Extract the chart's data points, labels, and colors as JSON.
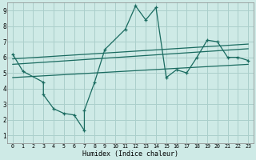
{
  "title": "",
  "xlabel": "Humidex (Indice chaleur)",
  "xlim": [
    -0.5,
    23.5
  ],
  "ylim": [
    0.5,
    9.5
  ],
  "xticks": [
    0,
    1,
    2,
    3,
    4,
    5,
    6,
    7,
    8,
    9,
    10,
    11,
    12,
    13,
    14,
    15,
    16,
    17,
    18,
    19,
    20,
    21,
    22,
    23
  ],
  "yticks": [
    1,
    2,
    3,
    4,
    5,
    6,
    7,
    8,
    9
  ],
  "bg_color": "#ceeae6",
  "grid_color": "#aacfcb",
  "line_color": "#1a6b60",
  "scatter_x": [
    0,
    1,
    3,
    3,
    4,
    5,
    6,
    7,
    7,
    8,
    9,
    11,
    12,
    13,
    14,
    15,
    16,
    17,
    18,
    19,
    20,
    21,
    22,
    23
  ],
  "scatter_y": [
    6.2,
    5.1,
    4.4,
    3.6,
    2.7,
    2.4,
    2.3,
    1.3,
    2.6,
    4.4,
    6.5,
    7.8,
    9.3,
    8.4,
    9.2,
    4.7,
    5.2,
    5.0,
    6.0,
    7.1,
    7.0,
    6.0,
    6.0,
    5.8
  ],
  "reg_line1_x": [
    0,
    23
  ],
  "reg_line1_y": [
    5.9,
    6.85
  ],
  "reg_line2_x": [
    0,
    23
  ],
  "reg_line2_y": [
    5.55,
    6.55
  ],
  "reg_line3_x": [
    0,
    23
  ],
  "reg_line3_y": [
    4.7,
    5.55
  ]
}
